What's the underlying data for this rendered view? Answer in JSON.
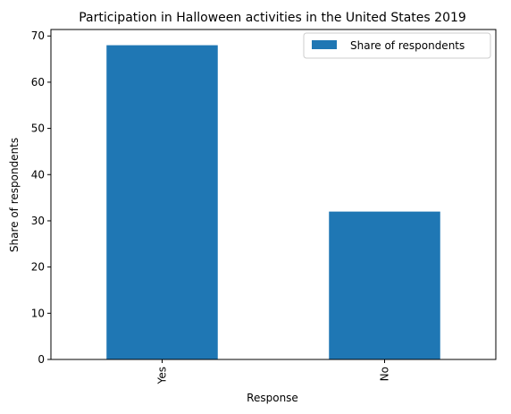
{
  "chart_data": {
    "type": "bar",
    "title": "Participation in Halloween activities in the United States 2019",
    "xlabel": "Response",
    "ylabel": "Share of respondents",
    "categories": [
      "Yes",
      "No"
    ],
    "series": [
      {
        "name": "Share of respondents",
        "values": [
          68,
          32
        ],
        "color": "#1f77b4"
      }
    ],
    "ylim": [
      0,
      71.4
    ],
    "yticks": [
      0,
      10,
      20,
      30,
      40,
      50,
      60,
      70
    ],
    "grid": false,
    "legend": "top-right"
  }
}
